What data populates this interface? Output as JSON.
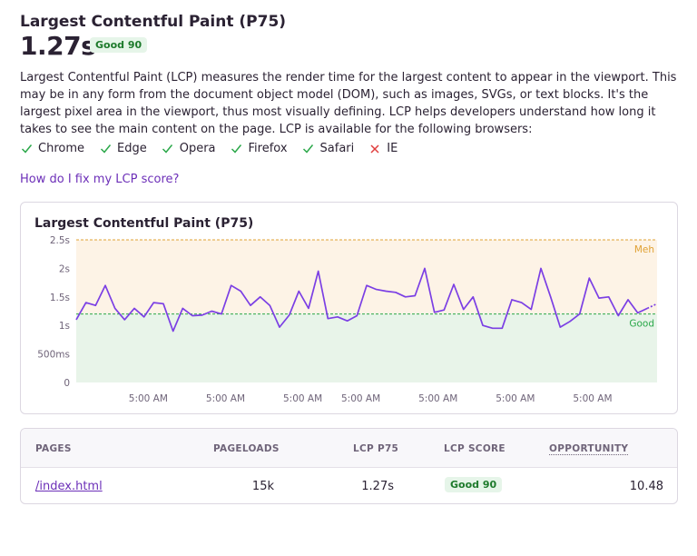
{
  "header": {
    "title": "Largest Contentful Paint (P75)",
    "value": "1.27s",
    "badge": "Good 90"
  },
  "description": "Largest Contentful Paint (LCP) measures the render time for the largest content to appear in the viewport. This may be in any form from the document object model (DOM), such as images, SVGs, or text blocks. It's the largest pixel area in the viewport, thus most visually defining. LCP helps developers understand how long it takes to see the main content on the page. LCP is available for the following browsers:",
  "browsers": [
    {
      "name": "Chrome",
      "supported": true
    },
    {
      "name": "Edge",
      "supported": true
    },
    {
      "name": "Opera",
      "supported": true
    },
    {
      "name": "Firefox",
      "supported": true
    },
    {
      "name": "Safari",
      "supported": true
    },
    {
      "name": "IE",
      "supported": false
    }
  ],
  "fix_link": "How do I fix my LCP score?",
  "colors": {
    "good": "#2ba84a",
    "meh": "#e0a133",
    "line": "#7b3fe4",
    "link": "#6c2fb8"
  },
  "chart_data": {
    "type": "line",
    "title": "Largest Contentful Paint (P75)",
    "ylim": [
      0,
      2.5
    ],
    "y_ticks": [
      "0",
      "500ms",
      "1s",
      "1.5s",
      "2s",
      "2.5s"
    ],
    "x_ticks": [
      "5:00 AM",
      "5:00 AM",
      "5:00 AM",
      "5:00 AM",
      "5:00 AM",
      "5:00 AM",
      "5:00 AM"
    ],
    "thresholds": [
      {
        "name": "Meh",
        "value": 2.5
      },
      {
        "name": "Good",
        "value": 1.2
      }
    ],
    "series": [
      {
        "values": [
          1.1,
          1.4,
          1.35,
          1.7,
          1.3,
          1.1,
          1.3,
          1.15,
          1.4,
          1.38,
          0.9,
          1.3,
          1.17,
          1.18,
          1.25,
          1.2,
          1.7,
          1.6,
          1.35,
          1.5,
          1.35,
          0.97,
          1.18,
          1.6,
          1.3,
          1.95,
          1.12,
          1.15,
          1.08,
          1.17,
          1.7,
          1.63,
          1.6,
          1.58,
          1.5,
          1.52,
          2.0,
          1.23,
          1.27,
          1.72,
          1.28,
          1.5,
          1.0,
          0.95,
          0.95,
          1.45,
          1.4,
          1.28,
          2.0,
          1.5,
          0.97,
          1.07,
          1.2,
          1.83,
          1.48,
          1.5,
          1.17,
          1.45,
          1.22,
          1.3,
          1.38
        ]
      }
    ]
  },
  "table": {
    "headers": {
      "pages": "PAGES",
      "pageloads": "PAGELOADS",
      "lcp_p75": "LCP P75",
      "lcp_score": "LCP SCORE",
      "opportunity": "OPPORTUNITY"
    },
    "rows": [
      {
        "page": "/index.html",
        "pageloads": "15k",
        "lcp_p75": "1.27s",
        "lcp_score": "Good 90",
        "opportunity": "10.48"
      }
    ]
  }
}
